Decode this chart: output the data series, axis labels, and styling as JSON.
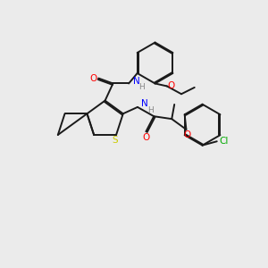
{
  "background_color": "#ebebeb",
  "atom_colors": {
    "N": "#0000ff",
    "O": "#ff0000",
    "S": "#cccc00",
    "Cl": "#00aa00",
    "H": "#888888"
  },
  "bond_color": "#1a1a1a"
}
